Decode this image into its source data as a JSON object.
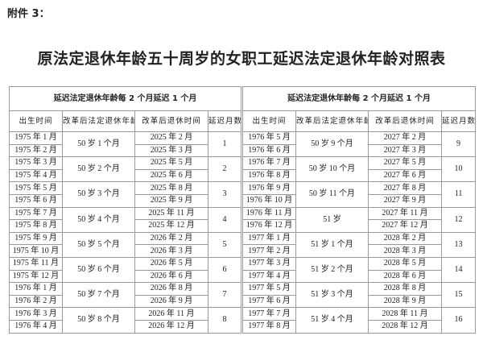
{
  "attachment_label": "附件 3：",
  "title": "原法定退休年龄五十周岁的女职工延迟法定退休年龄对照表",
  "tables": [
    {
      "caption": "延迟法定退休年龄每 2 个月延迟 1 个月",
      "headers": [
        "出生时间",
        "改革后法定退休年龄",
        "改革后退休时间",
        "延迟月数"
      ],
      "groups": [
        {
          "births": [
            "1975 年 1 月",
            "1975 年 2 月"
          ],
          "age": "50 岁 1 个月",
          "retire": [
            "2025 年 2 月",
            "2025 年 3 月"
          ],
          "delay": "1"
        },
        {
          "births": [
            "1975 年 3 月",
            "1975 年 4 月"
          ],
          "age": "50 岁 2 个月",
          "retire": [
            "2025 年 5 月",
            "2025 年 6 月"
          ],
          "delay": "2"
        },
        {
          "births": [
            "1975 年 5 月",
            "1975 年 6 月"
          ],
          "age": "50 岁 3 个月",
          "retire": [
            "2025 年 8 月",
            "2025 年 9 月"
          ],
          "delay": "3"
        },
        {
          "births": [
            "1975 年 7 月",
            "1975 年 8 月"
          ],
          "age": "50 岁 4 个月",
          "retire": [
            "2025 年 11 月",
            "2025 年 12 月"
          ],
          "delay": "4"
        },
        {
          "births": [
            "1975 年 9 月",
            "1975 年 10 月"
          ],
          "age": "50 岁 5 个月",
          "retire": [
            "2026 年 2 月",
            "2026 年 3 月"
          ],
          "delay": "5"
        },
        {
          "births": [
            "1975 年 11 月",
            "1975 年 12 月"
          ],
          "age": "50 岁 6 个月",
          "retire": [
            "2026 年 5 月",
            "2026 年 6 月"
          ],
          "delay": "6"
        },
        {
          "births": [
            "1976 年 1 月",
            "1976 年 2 月"
          ],
          "age": "50 岁 7 个月",
          "retire": [
            "2026 年 8 月",
            "2026 年 9 月"
          ],
          "delay": "7"
        },
        {
          "births": [
            "1976 年 3 月",
            "1976 年 4 月"
          ],
          "age": "50 岁 8 个月",
          "retire": [
            "2026 年 11 月",
            "2026 年 12 月"
          ],
          "delay": "8"
        }
      ]
    },
    {
      "caption": "延迟法定退休年龄每 2 个月延迟 1 个月",
      "headers": [
        "出生时间",
        "改革后法定退休年龄",
        "改革后退休时间",
        "延迟月数"
      ],
      "groups": [
        {
          "births": [
            "1976 年 5 月",
            "1976 年 6 月"
          ],
          "age": "50 岁 9 个月",
          "retire": [
            "2027 年 2 月",
            "2027 年 3 月"
          ],
          "delay": "9"
        },
        {
          "births": [
            "1976 年 7 月",
            "1976 年 8 月"
          ],
          "age": "50 岁 10 个月",
          "retire": [
            "2027 年 5 月",
            "2027 年 6 月"
          ],
          "delay": "10"
        },
        {
          "births": [
            "1976 年 9 月",
            "1976 年 10 月"
          ],
          "age": "50 岁 11 个月",
          "retire": [
            "2027 年 8 月",
            "2027 年 9 月"
          ],
          "delay": "11"
        },
        {
          "births": [
            "1976 年 11 月",
            "1976 年 12 月"
          ],
          "age": "51 岁",
          "retire": [
            "2027 年 11 月",
            "2027 年 12 月"
          ],
          "delay": "12"
        },
        {
          "births": [
            "1977 年 1 月",
            "1977 年 2 月"
          ],
          "age": "51 岁 1 个月",
          "retire": [
            "2028 年 2 月",
            "2028 年 3 月"
          ],
          "delay": "13"
        },
        {
          "births": [
            "1977 年 3 月",
            "1977 年 4 月"
          ],
          "age": "51 岁 2 个月",
          "retire": [
            "2028 年 5 月",
            "2028 年 6 月"
          ],
          "delay": "14"
        },
        {
          "births": [
            "1977 年 5 月",
            "1977 年 6 月"
          ],
          "age": "51 岁 3 个月",
          "retire": [
            "2028 年 8 月",
            "2028 年 9 月"
          ],
          "delay": "15"
        },
        {
          "births": [
            "1977 年 7 月",
            "1977 年 8 月"
          ],
          "age": "51 岁 4 个月",
          "retire": [
            "2028 年 11 月",
            "2028 年 12 月"
          ],
          "delay": "16"
        }
      ]
    }
  ]
}
